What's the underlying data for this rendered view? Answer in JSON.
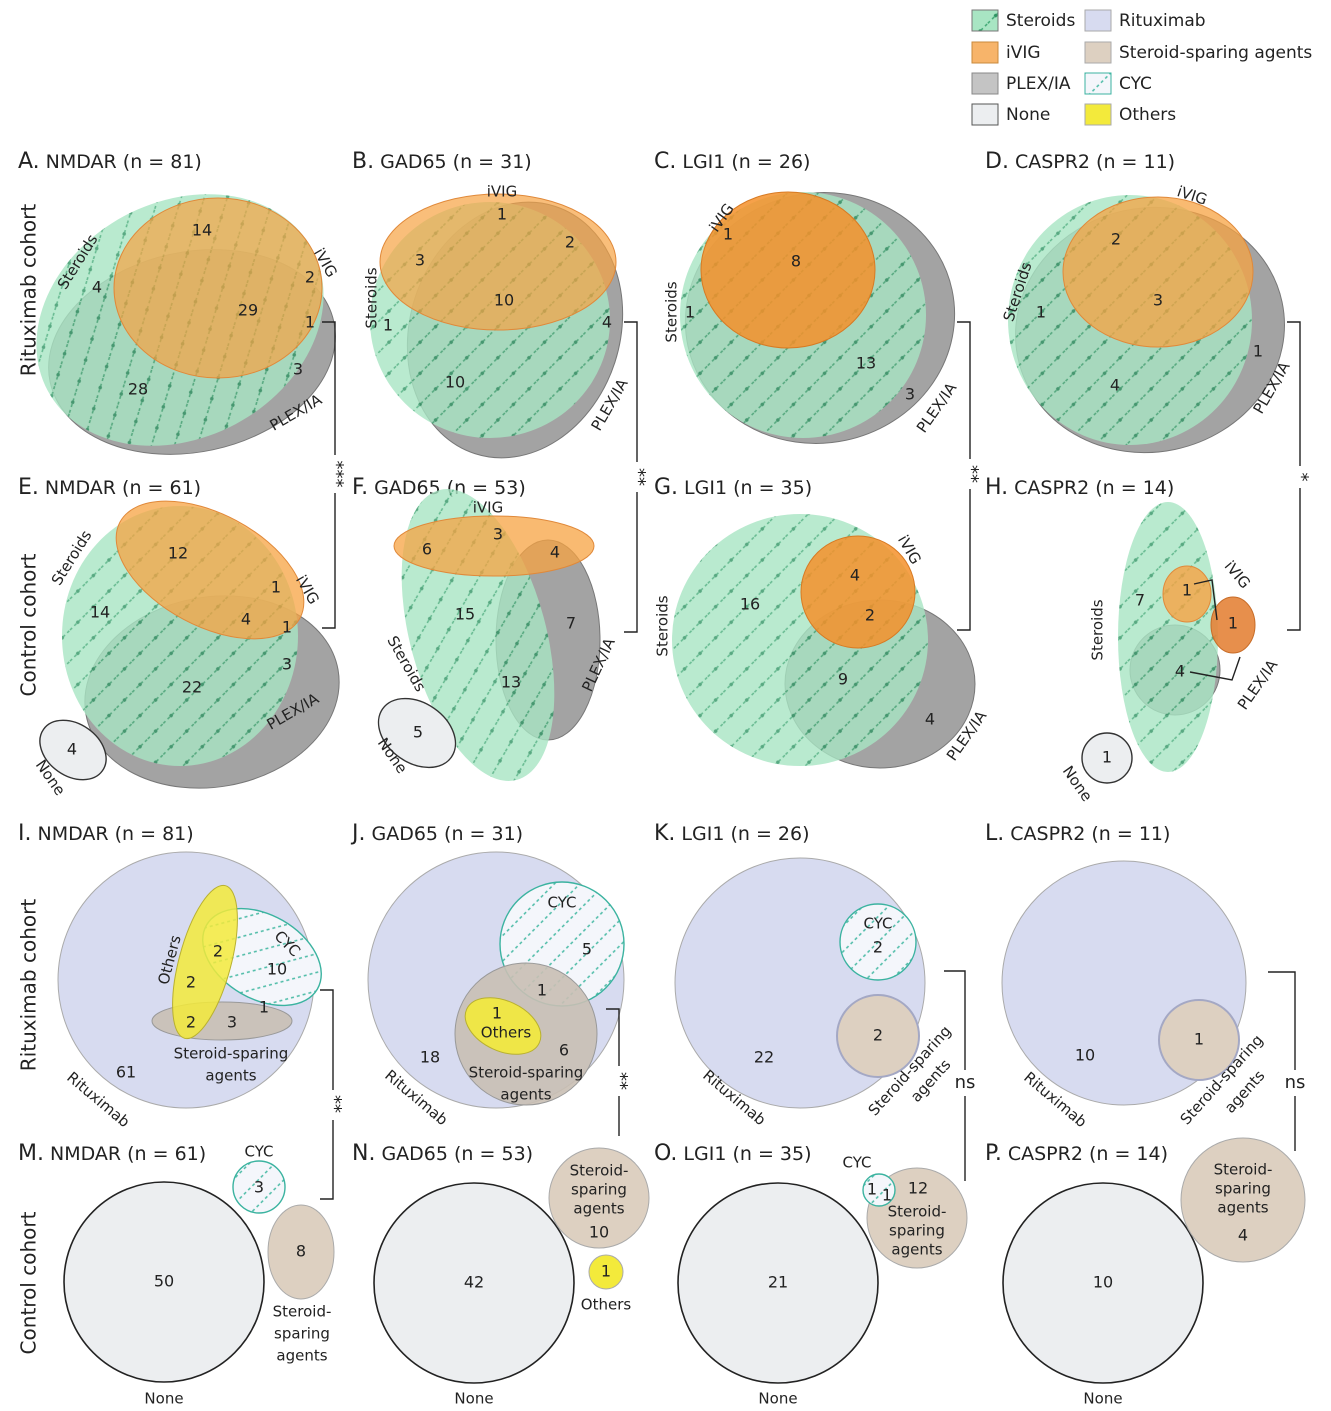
{
  "colors": {
    "steroids": "#79d9a3",
    "ivig": "#f7a342",
    "plex": "#8c8c8c",
    "none": "#eceef0",
    "rituximab": "#d7dbf0",
    "ssa": "#ddd0c1",
    "cyc_stroke": "#3bb3a0",
    "others": "#f3ea3b"
  },
  "legend": [
    {
      "key": "steroids",
      "label": "Steroids"
    },
    {
      "key": "rituximab",
      "label": "Rituximab"
    },
    {
      "key": "ivig",
      "label": "iVIG"
    },
    {
      "key": "ssa",
      "label": "Steroid-sparing agents"
    },
    {
      "key": "plex",
      "label": "PLEX/IA"
    },
    {
      "key": "cyc",
      "label": "CYC"
    },
    {
      "key": "none",
      "label": "None"
    },
    {
      "key": "others",
      "label": "Others"
    }
  ],
  "row_labels": {
    "top_rituximab": "Rituximab cohort",
    "top_control": "Control cohort",
    "bottom_rituximab": "Rituximab cohort",
    "bottom_control": "Control cohort"
  },
  "panels": {
    "A": {
      "letter": "A.",
      "title": "NMDAR (n = 81)"
    },
    "B": {
      "letter": "B.",
      "title": "GAD65 (n = 31)"
    },
    "C": {
      "letter": "C.",
      "title": "LGI1 (n = 26)"
    },
    "D": {
      "letter": "D.",
      "title": "CASPR2 (n = 11)"
    },
    "E": {
      "letter": "E.",
      "title": "NMDAR (n = 61)"
    },
    "F": {
      "letter": "F.",
      "title": "GAD65 (n = 53)"
    },
    "G": {
      "letter": "G.",
      "title": "LGI1 (n = 35)"
    },
    "H": {
      "letter": "H.",
      "title": "CASPR2 (n = 14)"
    },
    "I": {
      "letter": "I.",
      "title": "NMDAR (n = 81)"
    },
    "J": {
      "letter": "J.",
      "title": "GAD65 (n = 31)"
    },
    "K": {
      "letter": "K.",
      "title": "LGI1 (n = 26)"
    },
    "L": {
      "letter": "L.",
      "title": "CASPR2 (n = 11)"
    },
    "M": {
      "letter": "M.",
      "title": "NMDAR (n = 61)"
    },
    "N": {
      "letter": "N.",
      "title": "GAD65 (n = 53)"
    },
    "O": {
      "letter": "O.",
      "title": "LGI1 (n = 35)"
    },
    "P": {
      "letter": "P.",
      "title": "CASPR2 (n = 14)"
    }
  },
  "set_labels": {
    "steroids": "Steroids",
    "ivig": "iVIG",
    "plex": "PLEX/IA",
    "none": "None",
    "rituximab": "Rituximab",
    "cyc": "CYC",
    "others": "Others",
    "ssa_1": "Steroid-sparing",
    "ssa_2": "agents",
    "ssa_dash": "Steroid-",
    "ssa_sparing": "sparing"
  },
  "counts": {
    "A": {
      "s_only": "4",
      "i_only": "14",
      "si": "29",
      "i_edge": "2",
      "ip": "1",
      "p_only": "3",
      "sp": "28"
    },
    "B": {
      "i_only": "1",
      "ip": "2",
      "si": "3",
      "sip": "10",
      "s_only": "1",
      "p_only": "4",
      "sp": "10"
    },
    "C": {
      "i_only": "1",
      "sip": "8",
      "s_only": "1",
      "sp": "13",
      "p_only": "3"
    },
    "D": {
      "si": "2",
      "sip": "3",
      "s_only": "1",
      "p_only": "1",
      "sp": "4"
    },
    "E": {
      "si": "12",
      "s_only": "14",
      "i_edge": "1",
      "sip": "4",
      "ip": "1",
      "p_only": "3",
      "sp": "22",
      "none": "4"
    },
    "F": {
      "si": "6",
      "i_only": "3",
      "ip": "4",
      "s_only": "15",
      "p_only": "7",
      "sp": "13",
      "none": "5"
    },
    "G": {
      "s_only": "16",
      "si": "4",
      "sip": "2",
      "sp": "9",
      "p_only": "4"
    },
    "H": {
      "s_only": "7",
      "si": "1",
      "ip": "1",
      "sp": "4",
      "none": "1"
    },
    "I": {
      "r_only": "61",
      "others_top": "2",
      "others_mid": "2",
      "others_low": "2",
      "cyc": "10",
      "cyc_ssa": "1",
      "ssa": "3"
    },
    "J": {
      "r_only": "18",
      "cyc": "5",
      "cyc_ssa": "1",
      "others": "1",
      "ssa": "6"
    },
    "K": {
      "r_only": "22",
      "cyc": "2",
      "ssa": "2"
    },
    "L": {
      "r_only": "10",
      "ssa": "1"
    },
    "M": {
      "none": "50",
      "cyc": "3",
      "ssa": "8"
    },
    "N": {
      "none": "42",
      "ssa": "10",
      "others": "1"
    },
    "O": {
      "none": "21",
      "cyc": "1",
      "cyc_ssa": "1",
      "ssa": "12"
    },
    "P": {
      "none": "10",
      "ssa": "4"
    }
  },
  "significance": {
    "AE": "***",
    "BF": "**",
    "CG": "**",
    "DH": "*",
    "IM": "**",
    "JN": "**",
    "KO": "ns",
    "LP": "ns"
  }
}
